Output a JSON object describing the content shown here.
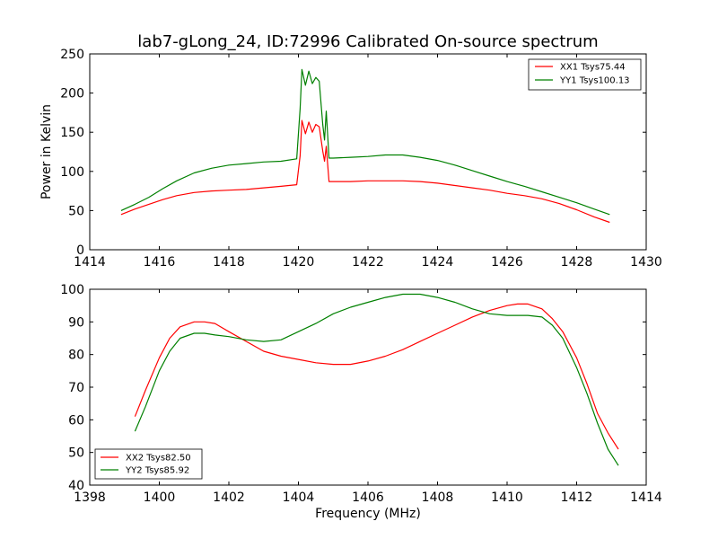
{
  "chart_data": [
    {
      "type": "line",
      "title": "lab7-gLong_24, ID:72996 Calibrated On-source spectrum",
      "xlabel": "",
      "ylabel": "Power in Kelvin",
      "xlim": [
        1414,
        1430
      ],
      "ylim": [
        0,
        250
      ],
      "xticks": [
        "1414",
        "1416",
        "1418",
        "1420",
        "1422",
        "1424",
        "1426",
        "1428",
        "1430"
      ],
      "yticks": [
        "0",
        "50",
        "100",
        "150",
        "200",
        "250"
      ],
      "grid": false,
      "legend_position": "top-right",
      "series": [
        {
          "name": "XX1 Tsys75.44",
          "color": "#ff0000",
          "x": [
            1414.9,
            1415.3,
            1415.7,
            1416.1,
            1416.5,
            1417.0,
            1417.5,
            1418.0,
            1418.5,
            1419.0,
            1419.5,
            1419.95,
            1420.05,
            1420.1,
            1420.2,
            1420.3,
            1420.4,
            1420.5,
            1420.6,
            1420.7,
            1420.75,
            1420.8,
            1420.88,
            1421.0,
            1421.5,
            1422.0,
            1422.5,
            1423.0,
            1423.5,
            1424.0,
            1424.5,
            1425.0,
            1425.5,
            1426.0,
            1426.5,
            1427.0,
            1427.5,
            1428.0,
            1428.5,
            1428.95
          ],
          "y": [
            45,
            52,
            58,
            64,
            69,
            73,
            75,
            76,
            77,
            79,
            81,
            83,
            120,
            165,
            148,
            163,
            150,
            160,
            157,
            126,
            113,
            132,
            87,
            87,
            87,
            88,
            88,
            88,
            87,
            85,
            82,
            79,
            76,
            72,
            69,
            65,
            59,
            51,
            42,
            35
          ]
        },
        {
          "name": "YY1 Tsys100.13",
          "color": "#008000",
          "x": [
            1414.9,
            1415.3,
            1415.7,
            1416.1,
            1416.5,
            1417.0,
            1417.5,
            1418.0,
            1418.5,
            1419.0,
            1419.5,
            1419.95,
            1420.05,
            1420.1,
            1420.2,
            1420.3,
            1420.4,
            1420.5,
            1420.6,
            1420.7,
            1420.75,
            1420.8,
            1420.88,
            1421.0,
            1421.5,
            1422.0,
            1422.5,
            1423.0,
            1423.5,
            1424.0,
            1424.5,
            1425.0,
            1425.5,
            1426.0,
            1426.5,
            1427.0,
            1427.5,
            1428.0,
            1428.5,
            1428.95
          ],
          "y": [
            50,
            58,
            67,
            78,
            88,
            98,
            104,
            108,
            110,
            112,
            113,
            116,
            180,
            230,
            210,
            228,
            212,
            220,
            215,
            160,
            140,
            177,
            117,
            117,
            118,
            119,
            121,
            121,
            118,
            114,
            108,
            101,
            94,
            87,
            81,
            74,
            67,
            60,
            52,
            45
          ]
        }
      ]
    },
    {
      "type": "line",
      "title": "",
      "xlabel": "Frequency (MHz)",
      "ylabel": "",
      "xlim": [
        1398,
        1414
      ],
      "ylim": [
        40,
        100
      ],
      "xticks": [
        "1398",
        "1400",
        "1402",
        "1404",
        "1406",
        "1408",
        "1410",
        "1412",
        "1414"
      ],
      "yticks": [
        "40",
        "50",
        "60",
        "70",
        "80",
        "90",
        "100"
      ],
      "grid": false,
      "legend_position": "bottom-left",
      "series": [
        {
          "name": "XX2 Tsys82.50",
          "color": "#ff0000",
          "x": [
            1399.3,
            1399.6,
            1400.0,
            1400.3,
            1400.6,
            1401.0,
            1401.3,
            1401.6,
            1402.0,
            1402.5,
            1403.0,
            1403.5,
            1404.0,
            1404.5,
            1405.0,
            1405.5,
            1406.0,
            1406.5,
            1407.0,
            1407.5,
            1408.0,
            1408.5,
            1409.0,
            1409.5,
            1410.0,
            1410.3,
            1410.6,
            1411.0,
            1411.3,
            1411.6,
            1412.0,
            1412.3,
            1412.6,
            1412.9,
            1413.2
          ],
          "y": [
            61,
            69,
            79,
            85,
            88.5,
            90,
            90,
            89.5,
            87,
            84,
            81,
            79.5,
            78.5,
            77.5,
            77,
            77,
            78,
            79.5,
            81.5,
            84,
            86.5,
            89,
            91.5,
            93.5,
            95,
            95.5,
            95.5,
            94,
            91,
            87,
            79,
            71,
            62,
            56,
            51
          ]
        },
        {
          "name": "YY2 Tsys85.92",
          "color": "#008000",
          "x": [
            1399.3,
            1399.6,
            1400.0,
            1400.3,
            1400.6,
            1401.0,
            1401.3,
            1401.6,
            1402.0,
            1402.5,
            1403.0,
            1403.5,
            1404.0,
            1404.5,
            1405.0,
            1405.5,
            1406.0,
            1406.5,
            1407.0,
            1407.5,
            1408.0,
            1408.5,
            1409.0,
            1409.5,
            1410.0,
            1410.3,
            1410.6,
            1411.0,
            1411.3,
            1411.6,
            1412.0,
            1412.3,
            1412.6,
            1412.9,
            1413.2
          ],
          "y": [
            56.5,
            64,
            75,
            81,
            85,
            86.5,
            86.5,
            86,
            85.5,
            84.5,
            84,
            84.5,
            87,
            89.5,
            92.5,
            94.5,
            96,
            97.5,
            98.5,
            98.5,
            97.5,
            96,
            94,
            92.5,
            92,
            92,
            92,
            91.5,
            89,
            85,
            76,
            68,
            59,
            51,
            46
          ]
        }
      ]
    }
  ]
}
